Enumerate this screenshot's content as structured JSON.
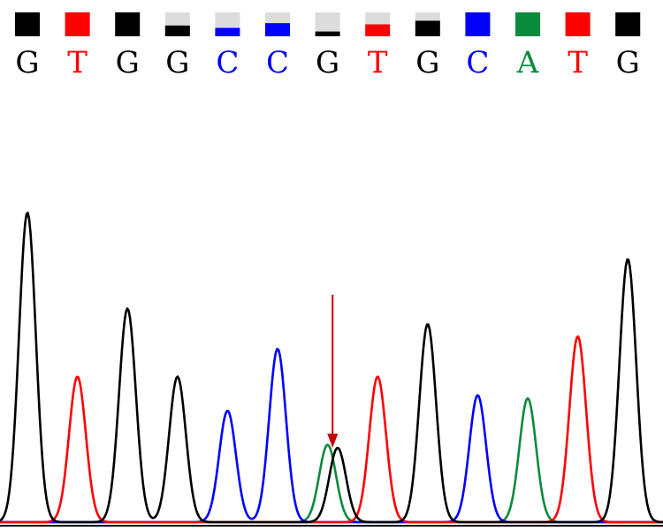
{
  "colors": {
    "A": "#0a8a3c",
    "C": "#0000ff",
    "G": "#000000",
    "T": "#ff0000",
    "quality_bg": "#dcdcdc",
    "arrow": "#cc0000",
    "baseline": "#000000"
  },
  "chart_data": {
    "type": "line",
    "subtype": "dna-sequencing-chromatogram",
    "sequence": [
      "G",
      "T",
      "G",
      "G",
      "C",
      "C",
      "G",
      "T",
      "G",
      "C",
      "A",
      "T",
      "G"
    ],
    "quality": [
      1.0,
      1.0,
      1.0,
      0.45,
      0.35,
      0.55,
      0.2,
      0.5,
      0.65,
      1.0,
      1.0,
      1.0,
      1.0
    ],
    "ylim": [
      0,
      1
    ],
    "peaks": [
      {
        "base": "G",
        "position": 1,
        "height": 1.0
      },
      {
        "base": "T",
        "position": 2,
        "height": 0.47
      },
      {
        "base": "G",
        "position": 3,
        "height": 0.69
      },
      {
        "base": "G",
        "position": 4,
        "height": 0.47
      },
      {
        "base": "C",
        "position": 5,
        "height": 0.36
      },
      {
        "base": "C",
        "position": 6,
        "height": 0.56
      },
      {
        "base": "A",
        "position": 7,
        "height": 0.25
      },
      {
        "base": "G",
        "position": 7.2,
        "height": 0.24
      },
      {
        "base": "T",
        "position": 8,
        "height": 0.47
      },
      {
        "base": "G",
        "position": 9,
        "height": 0.64
      },
      {
        "base": "C",
        "position": 10,
        "height": 0.41
      },
      {
        "base": "A",
        "position": 11,
        "height": 0.4
      },
      {
        "base": "T",
        "position": 12,
        "height": 0.6
      },
      {
        "base": "G",
        "position": 13,
        "height": 0.85
      }
    ],
    "annotations": [
      {
        "type": "arrow",
        "position": 7.1
      }
    ],
    "grid": false,
    "legend": "none"
  }
}
